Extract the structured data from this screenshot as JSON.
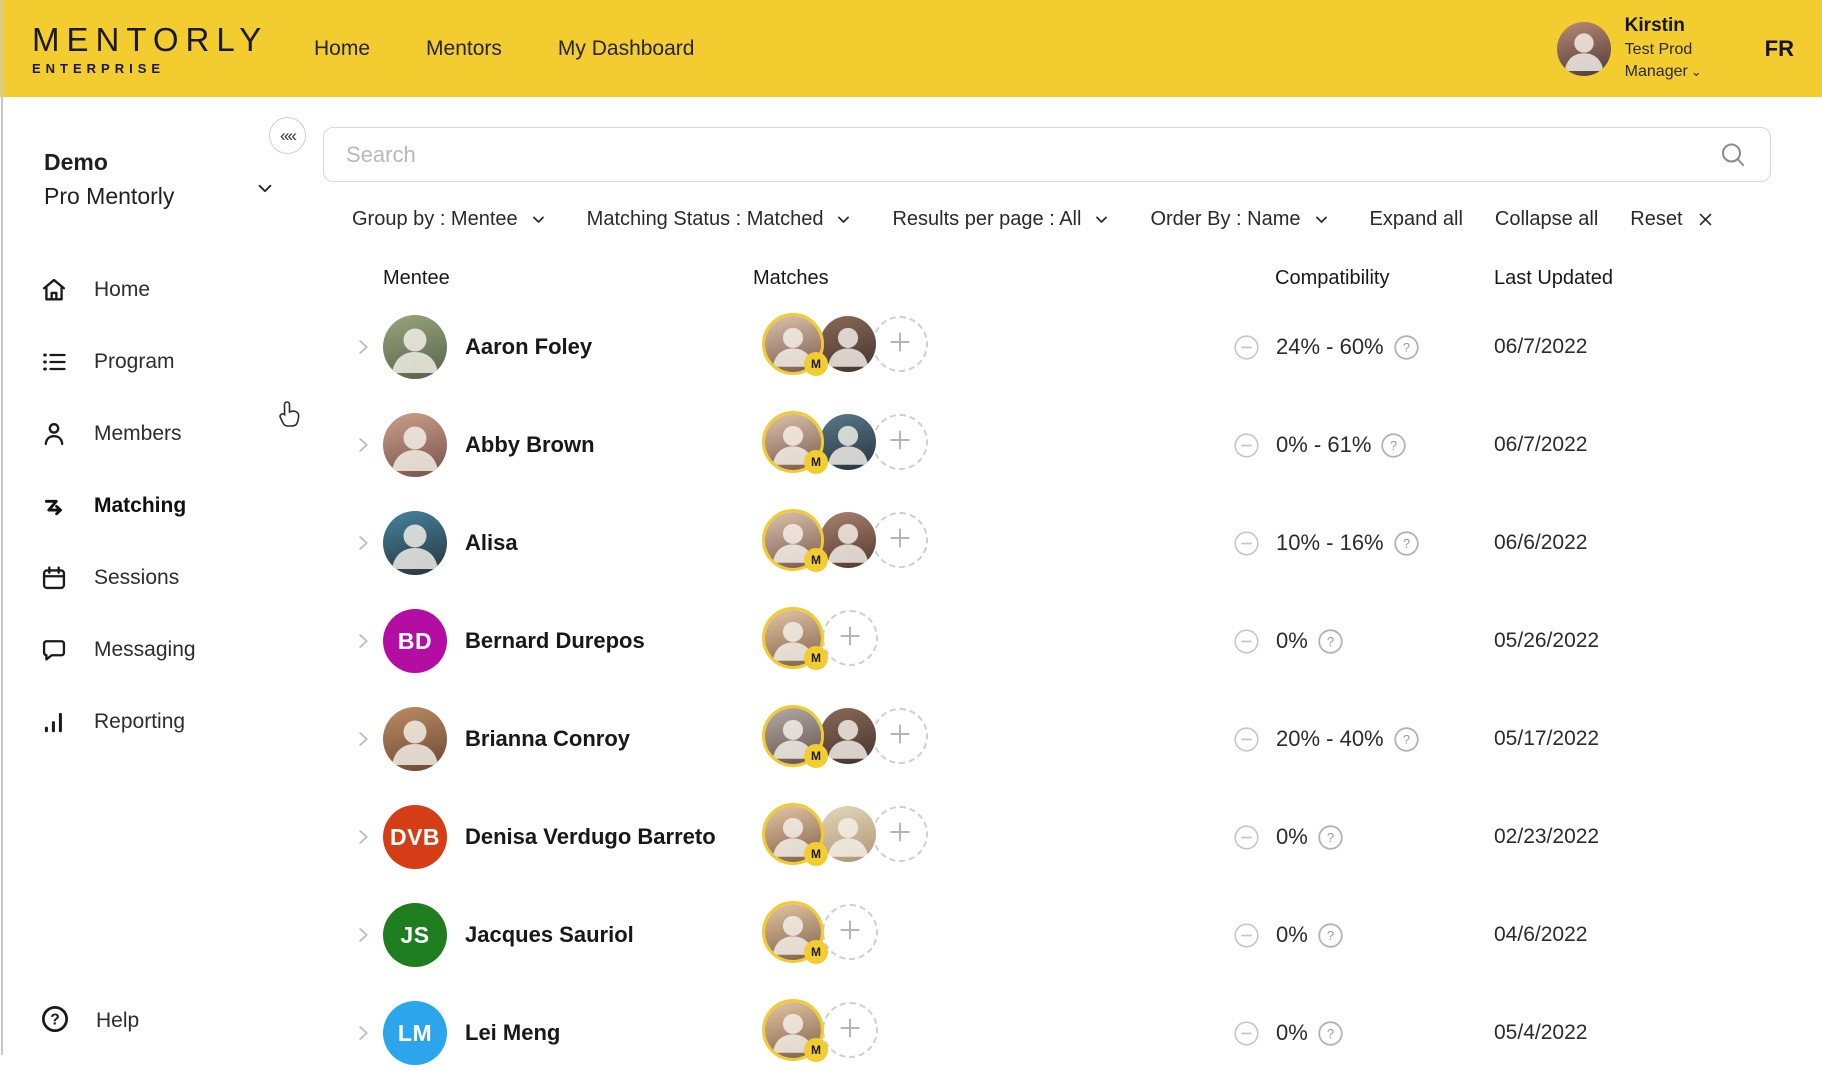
{
  "colors": {
    "accent_yellow": "#F3CC2F",
    "ring_yellow": "#F2CB2F"
  },
  "topbar": {
    "logo": {
      "name": "MENTORLY",
      "sub": "ENTERPRISE"
    },
    "nav": [
      {
        "label": "Home"
      },
      {
        "label": "Mentors"
      },
      {
        "label": "My Dashboard"
      }
    ],
    "user": {
      "name": "Kirstin",
      "role": "Test Prod Manager",
      "avatar_tone1": "#b98a74",
      "avatar_tone2": "#4e3a36"
    },
    "language": "FR"
  },
  "sidebar": {
    "collapse_icon": "««",
    "org": {
      "title": "Demo",
      "subtitle": "Pro Mentorly"
    },
    "items": [
      {
        "label": "Home",
        "icon": "home-icon",
        "active": false
      },
      {
        "label": "Program",
        "icon": "program-icon",
        "active": false
      },
      {
        "label": "Members",
        "icon": "members-icon",
        "active": false
      },
      {
        "label": "Matching",
        "icon": "matching-icon",
        "active": true
      },
      {
        "label": "Sessions",
        "icon": "sessions-icon",
        "active": false
      },
      {
        "label": "Messaging",
        "icon": "messaging-icon",
        "active": false
      },
      {
        "label": "Reporting",
        "icon": "reporting-icon",
        "active": false
      }
    ],
    "help": {
      "label": "Help",
      "icon": "help-icon"
    }
  },
  "search": {
    "placeholder": "Search"
  },
  "filters": [
    {
      "label": "Group by : Mentee",
      "type": "dropdown"
    },
    {
      "label": "Matching Status : Matched",
      "type": "dropdown"
    },
    {
      "label": "Results per page : All",
      "type": "dropdown"
    },
    {
      "label": "Order By : Name",
      "type": "dropdown"
    },
    {
      "label": "Expand all",
      "type": "action"
    },
    {
      "label": "Collapse all",
      "type": "action"
    },
    {
      "label": "Reset",
      "type": "reset"
    }
  ],
  "table": {
    "columns": [
      "Mentee",
      "Matches",
      "Compatibility",
      "Last Updated"
    ],
    "rows": [
      {
        "name": "Aaron Foley",
        "avatar": {
          "type": "photo",
          "tone1": "#9aa57d",
          "tone2": "#55614a"
        },
        "matches": [
          {
            "ring": true,
            "badge": "M",
            "tone1": "#dcc3ad",
            "tone2": "#7a584a"
          },
          {
            "ring": false,
            "tone1": "#8a6a58",
            "tone2": "#43332c"
          }
        ],
        "compatibility": "24% - 60%",
        "last_updated": "06/7/2022"
      },
      {
        "name": "Abby Brown",
        "avatar": {
          "type": "photo",
          "tone1": "#cc9f8c",
          "tone2": "#74524a"
        },
        "matches": [
          {
            "ring": true,
            "badge": "M",
            "tone1": "#dcc3ad",
            "tone2": "#7a584a"
          },
          {
            "ring": false,
            "tone1": "#57798a",
            "tone2": "#27333b"
          }
        ],
        "compatibility": "0% - 61%",
        "last_updated": "06/7/2022"
      },
      {
        "name": "Alisa",
        "avatar": {
          "type": "photo",
          "tone1": "#4583a0",
          "tone2": "#27343c"
        },
        "matches": [
          {
            "ring": true,
            "badge": "M",
            "tone1": "#dcc3ad",
            "tone2": "#7a584a"
          },
          {
            "ring": false,
            "tone1": "#a8816f",
            "tone2": "#54392f"
          }
        ],
        "compatibility": "10% - 16%",
        "last_updated": "06/6/2022"
      },
      {
        "name": "Bernard Durepos",
        "avatar": {
          "type": "initials",
          "initials": "BD",
          "color": "#B30DA3"
        },
        "matches": [
          {
            "ring": true,
            "badge": "M",
            "tone1": "#e4c5a5",
            "tone2": "#7e6046"
          }
        ],
        "compatibility": "0%",
        "last_updated": "05/26/2022"
      },
      {
        "name": "Brianna Conroy",
        "avatar": {
          "type": "photo",
          "tone1": "#bb8d65",
          "tone2": "#6b4730"
        },
        "matches": [
          {
            "ring": true,
            "badge": "M",
            "tone1": "#b3aba5",
            "tone2": "#63514a"
          },
          {
            "ring": false,
            "tone1": "#8a6a58",
            "tone2": "#43332c"
          }
        ],
        "compatibility": "20% - 40%",
        "last_updated": "05/17/2022"
      },
      {
        "name": "Denisa Verdugo Barreto",
        "avatar": {
          "type": "initials",
          "initials": "DVB",
          "color": "#D53D17"
        },
        "matches": [
          {
            "ring": true,
            "badge": "M",
            "tone1": "#e4c5a5",
            "tone2": "#7e6046"
          },
          {
            "ring": false,
            "tone1": "#e4d7ba",
            "tone2": "#ab9672"
          }
        ],
        "compatibility": "0%",
        "last_updated": "02/23/2022"
      },
      {
        "name": "Jacques Sauriol",
        "avatar": {
          "type": "initials",
          "initials": "JS",
          "color": "#1E7D1E"
        },
        "matches": [
          {
            "ring": true,
            "badge": "M",
            "tone1": "#e4c5a5",
            "tone2": "#7e6046"
          }
        ],
        "compatibility": "0%",
        "last_updated": "04/6/2022"
      },
      {
        "name": "Lei Meng",
        "avatar": {
          "type": "initials",
          "initials": "LM",
          "color": "#2BA5EC"
        },
        "matches": [
          {
            "ring": true,
            "badge": "M",
            "tone1": "#e4c5a5",
            "tone2": "#7e6046"
          }
        ],
        "compatibility": "0%",
        "last_updated": "05/4/2022"
      }
    ]
  }
}
